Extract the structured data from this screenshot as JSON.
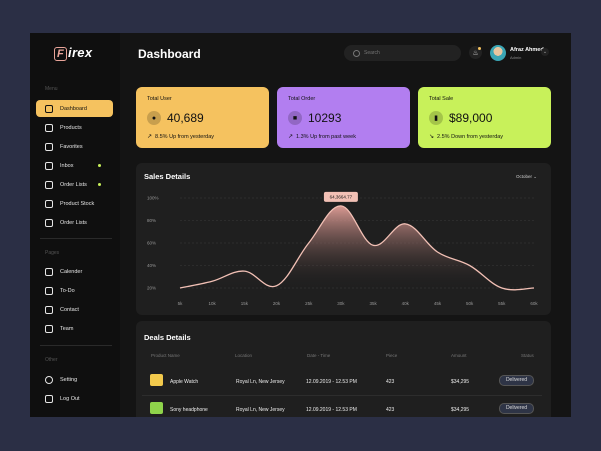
{
  "app": {
    "brand": "irex",
    "brand_letter": "F"
  },
  "header": {
    "title": "Dashboard",
    "search_placeholder": "Search",
    "user_name": "Afraz Ahmed",
    "user_role": "Admin"
  },
  "sidebar": {
    "menu_label": "Menu",
    "items": [
      {
        "label": "Dashboard",
        "icon": "dashboard-icon",
        "active": true
      },
      {
        "label": "Products",
        "icon": "box-icon"
      },
      {
        "label": "Favorites",
        "icon": "heart-icon"
      },
      {
        "label": "Inbox",
        "icon": "inbox-icon",
        "dot": true
      },
      {
        "label": "Order Lists",
        "icon": "list-icon",
        "dot": true
      },
      {
        "label": "Product Stock",
        "icon": "cube-icon"
      },
      {
        "label": "Order Lists",
        "icon": "list-icon"
      }
    ],
    "pages_label": "Pages",
    "pages": [
      {
        "label": "Calender",
        "icon": "calendar-icon"
      },
      {
        "label": "To-Do",
        "icon": "todo-icon"
      },
      {
        "label": "Contact",
        "icon": "contact-icon"
      },
      {
        "label": "Team",
        "icon": "team-icon"
      }
    ],
    "other_label": "Other",
    "other": [
      {
        "label": "Setting",
        "icon": "gear-icon"
      },
      {
        "label": "Log Out",
        "icon": "logout-icon"
      }
    ]
  },
  "stats": [
    {
      "title": "Total User",
      "value": "40,689",
      "sub": "8.5% Up from yesterday",
      "color": "#f5c25f",
      "icon": "users-icon"
    },
    {
      "title": "Total Order",
      "value": "10293",
      "sub": "1.3% Up from past week",
      "color": "#b27ef0",
      "icon": "order-icon"
    },
    {
      "title": "Total Sale",
      "value": "$89,000",
      "sub": "2.5% Down from yesterday",
      "color": "#c8f15a",
      "icon": "chart-icon"
    }
  ],
  "sales": {
    "title": "Sales Details",
    "month": "October",
    "tooltip": "64,3664.77"
  },
  "chart_data": {
    "type": "area",
    "x": [
      "5k",
      "10k",
      "15k",
      "20k",
      "25k",
      "30k",
      "35k",
      "40k",
      "45k",
      "50k",
      "55k",
      "60k"
    ],
    "y_ticks": [
      "100%",
      "80%",
      "60%",
      "40%",
      "20%"
    ],
    "ylim": [
      20,
      100
    ],
    "series": [
      {
        "values": [
          20,
          26,
          35,
          22,
          60,
          93,
          58,
          77,
          52,
          40,
          20,
          20
        ]
      }
    ],
    "annotation": "64,3664.77",
    "grid": true
  },
  "deals": {
    "title": "Deals Details",
    "headers": [
      "Product Name",
      "Location",
      "Date - Time",
      "Piece",
      "Amount",
      "Status"
    ],
    "rows": [
      {
        "product": "Apple Watch",
        "location": "Royal Ln, New Jersey",
        "datetime": "12.09.2019 - 12.53 PM",
        "piece": "423",
        "amount": "$34,295",
        "status": "Delivered",
        "thumb": "#f2c94c"
      },
      {
        "product": "Sony headphone",
        "location": "Royal Ln, New Jersey",
        "datetime": "12.09.2019 - 12.53 PM",
        "piece": "423",
        "amount": "$34,295",
        "status": "Delivered",
        "thumb": "#8fd44b"
      }
    ]
  }
}
